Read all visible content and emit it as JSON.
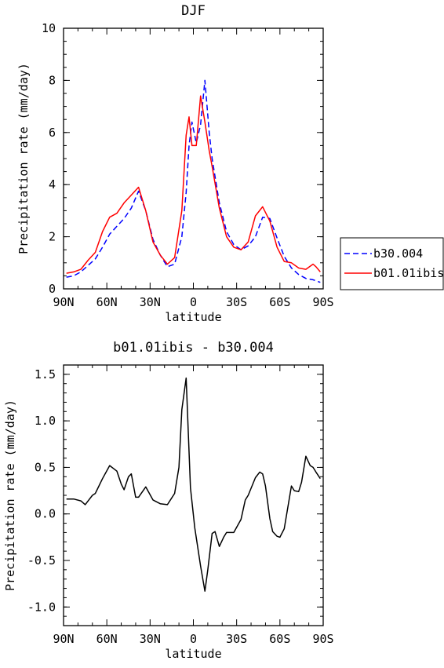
{
  "chart_data": [
    {
      "type": "line",
      "title": "DJF",
      "xlabel": "latitude",
      "ylabel": "Precipitation rate (mm/day)",
      "xlim": [
        90,
        -90
      ],
      "ylim": [
        0,
        10
      ],
      "xticks": [
        90,
        60,
        30,
        0,
        -30,
        -60,
        -90
      ],
      "xticklabels": [
        "90N",
        "60N",
        "30N",
        "0",
        "30S",
        "60S",
        "90S"
      ],
      "yticks": [
        0,
        2,
        4,
        6,
        8,
        10
      ],
      "yticklabels": [
        "0",
        "2",
        "4",
        "6",
        "8",
        "10"
      ],
      "legend": "right, outside plot",
      "series": [
        {
          "name": "b30.004",
          "color": "#0000ff",
          "dash": "dashed",
          "x": [
            88,
            83,
            78,
            73,
            68,
            63,
            58,
            53,
            48,
            43,
            38,
            33,
            28,
            23,
            18,
            13,
            8,
            5,
            3,
            1,
            -2,
            -5,
            -8,
            -11,
            -13,
            -18,
            -23,
            -28,
            -33,
            -38,
            -43,
            -48,
            -53,
            -58,
            -63,
            -68,
            -73,
            -78,
            -83,
            -88
          ],
          "y": [
            0.45,
            0.5,
            0.65,
            0.9,
            1.15,
            1.6,
            2.1,
            2.4,
            2.7,
            3.1,
            3.75,
            3.0,
            1.9,
            1.3,
            0.85,
            0.95,
            2.0,
            3.7,
            5.5,
            6.4,
            5.6,
            6.3,
            8.0,
            6.0,
            5.0,
            3.3,
            2.2,
            1.7,
            1.5,
            1.65,
            2.0,
            2.75,
            2.7,
            1.95,
            1.25,
            0.8,
            0.55,
            0.4,
            0.35,
            0.25
          ]
        },
        {
          "name": "b01.01ibis",
          "color": "#ff0000",
          "dash": "solid",
          "x": [
            88,
            83,
            78,
            73,
            68,
            63,
            58,
            53,
            48,
            43,
            38,
            33,
            28,
            23,
            18,
            13,
            8,
            5,
            3,
            1,
            -2,
            -5,
            -8,
            -11,
            -13,
            -18,
            -23,
            -28,
            -33,
            -38,
            -43,
            -48,
            -53,
            -58,
            -63,
            -68,
            -73,
            -78,
            -83,
            -85,
            -88
          ],
          "y": [
            0.6,
            0.65,
            0.75,
            1.1,
            1.4,
            2.2,
            2.75,
            2.9,
            3.3,
            3.6,
            3.9,
            3.0,
            1.8,
            1.3,
            0.95,
            1.2,
            3.0,
            5.9,
            6.6,
            5.5,
            5.5,
            7.4,
            6.4,
            5.3,
            4.7,
            3.1,
            2.0,
            1.6,
            1.5,
            1.8,
            2.8,
            3.15,
            2.6,
            1.6,
            1.05,
            1.0,
            0.8,
            0.75,
            0.95,
            0.85,
            0.65
          ]
        }
      ]
    },
    {
      "type": "line",
      "title": "b01.01ibis - b30.004",
      "xlabel": "latitude",
      "ylabel": "Precipitation rate (mm/day)",
      "xlim": [
        90,
        -90
      ],
      "ylim": [
        -1.2,
        1.6
      ],
      "xticks": [
        90,
        60,
        30,
        0,
        -30,
        -60,
        -90
      ],
      "xticklabels": [
        "90N",
        "60N",
        "30N",
        "0",
        "30S",
        "60S",
        "90S"
      ],
      "yticks": [
        1.5,
        1.0,
        0.5,
        0.0,
        -0.5,
        -1.0
      ],
      "yticklabels": [
        "1.5",
        "1.0",
        "0.5",
        "0.0",
        "-0.5",
        "-1.0"
      ],
      "series": [
        {
          "color": "#000000",
          "dash": "solid",
          "x": [
            88,
            83,
            78,
            75,
            70,
            68,
            63,
            58,
            53,
            50,
            48,
            45,
            43,
            40,
            38,
            33,
            28,
            23,
            18,
            13,
            10,
            8,
            5,
            2,
            -1,
            -5,
            -8,
            -10,
            -13,
            -15,
            -18,
            -21,
            -23,
            -28,
            -33,
            -36,
            -38,
            -43,
            -46,
            -48,
            -50,
            -53,
            -55,
            -58,
            -60,
            -63,
            -66,
            -68,
            -70,
            -73,
            -75,
            -78,
            -81,
            -83,
            -85,
            -88
          ],
          "y": [
            0.16,
            0.16,
            0.14,
            0.1,
            0.2,
            0.22,
            0.38,
            0.52,
            0.46,
            0.32,
            0.26,
            0.4,
            0.43,
            0.18,
            0.18,
            0.29,
            0.15,
            0.11,
            0.1,
            0.22,
            0.5,
            1.12,
            1.46,
            0.28,
            -0.15,
            -0.56,
            -0.83,
            -0.6,
            -0.21,
            -0.19,
            -0.35,
            -0.25,
            -0.2,
            -0.2,
            -0.06,
            0.15,
            0.2,
            0.39,
            0.45,
            0.43,
            0.3,
            -0.05,
            -0.19,
            -0.24,
            -0.25,
            -0.16,
            0.12,
            0.3,
            0.25,
            0.24,
            0.34,
            0.62,
            0.52,
            0.5,
            0.45,
            0.38
          ]
        }
      ]
    }
  ]
}
